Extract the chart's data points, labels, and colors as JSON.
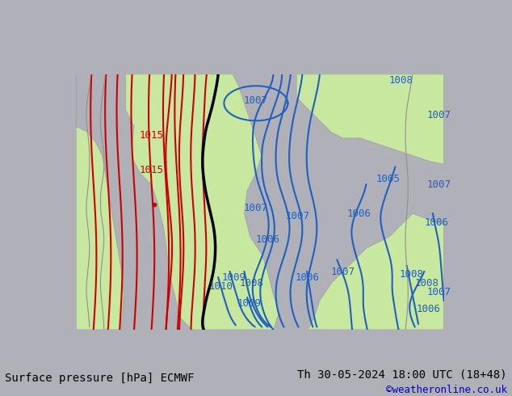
{
  "title_left": "Surface pressure [hPa] ECMWF",
  "title_right": "Th 30-05-2024 18:00 UTC (18+48)",
  "credit": "©weatheronline.co.uk",
  "bg_color": "#e8e8e8",
  "land_color": "#c8e8a0",
  "sea_color": "#dcdcdc",
  "isobar_blue_color": "#2060c0",
  "isobar_red_color": "#cc0000",
  "isobar_black_color": "#000000",
  "label_fontsize": 9,
  "footer_fontsize": 10,
  "credit_fontsize": 9,
  "credit_color": "#0000cc"
}
